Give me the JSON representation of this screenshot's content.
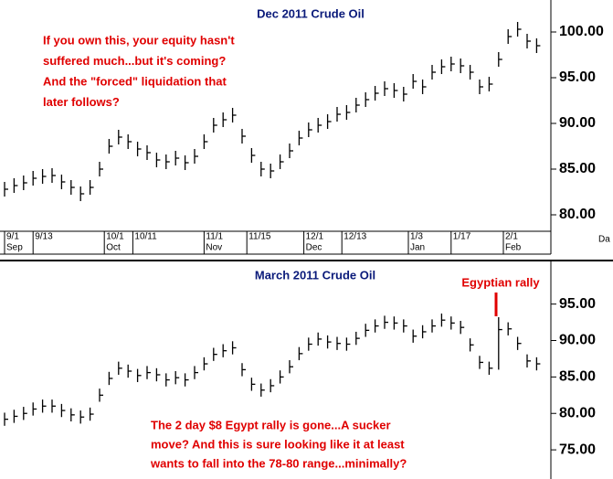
{
  "chart_data": [
    {
      "type": "ohlc",
      "title": "Dec 2011 Crude Oil",
      "annotation": [
        "If you own this, your equity hasn't",
        "suffered much...but it's coming?",
        "And the \"forced\" liquidation that",
        "later follows?"
      ],
      "xlabel": "Da",
      "color": "#000000",
      "x": [
        0,
        2,
        4,
        6,
        8,
        10,
        12,
        14,
        16,
        18,
        20,
        22,
        24,
        26,
        28,
        30,
        32,
        34,
        36,
        38,
        40,
        42,
        44,
        46,
        48,
        50,
        52,
        54,
        56,
        58,
        60,
        62,
        64,
        66,
        68,
        70,
        72,
        74,
        76,
        78,
        80,
        82,
        84,
        86,
        88,
        90,
        92,
        94,
        96,
        98,
        100,
        102,
        104,
        106,
        108,
        110,
        112
      ],
      "high": [
        83.6,
        84.0,
        84.3,
        84.8,
        85.0,
        85.1,
        84.4,
        83.8,
        83.1,
        83.8,
        85.8,
        88.3,
        89.3,
        88.8,
        88.0,
        87.6,
        86.8,
        86.6,
        87.0,
        86.5,
        87.2,
        88.8,
        90.6,
        91.2,
        91.7,
        89.4,
        87.3,
        85.8,
        85.6,
        86.6,
        87.8,
        89.2,
        90.1,
        90.6,
        91.0,
        91.8,
        92.0,
        92.8,
        93.4,
        94.1,
        94.6,
        94.4,
        94.0,
        95.4,
        94.8,
        96.4,
        97.0,
        97.3,
        97.1,
        96.4,
        94.8,
        95.1,
        97.8,
        100.3,
        101.1,
        99.8,
        99.3
      ],
      "low": [
        82.0,
        82.4,
        82.7,
        83.2,
        83.4,
        83.5,
        82.8,
        82.2,
        81.5,
        82.2,
        84.2,
        86.7,
        87.7,
        87.2,
        86.4,
        86.0,
        85.2,
        85.0,
        85.4,
        84.9,
        85.6,
        87.2,
        89.0,
        89.6,
        90.1,
        87.8,
        85.7,
        84.2,
        84.0,
        85.0,
        86.2,
        87.6,
        88.5,
        89.0,
        89.4,
        90.2,
        90.4,
        91.2,
        91.8,
        92.5,
        93.0,
        92.8,
        92.4,
        93.8,
        93.2,
        94.8,
        95.4,
        95.7,
        95.5,
        94.8,
        93.2,
        93.5,
        96.2,
        98.7,
        99.5,
        98.2,
        97.7
      ],
      "close": [
        82.8,
        83.2,
        83.5,
        84.0,
        84.2,
        84.3,
        83.6,
        83.0,
        82.3,
        83.0,
        85.0,
        87.5,
        88.5,
        88.0,
        87.2,
        86.8,
        86.0,
        85.8,
        86.2,
        85.7,
        86.4,
        88.0,
        89.8,
        90.4,
        90.9,
        88.6,
        86.5,
        85.0,
        84.8,
        85.8,
        87.0,
        88.4,
        89.3,
        89.8,
        90.2,
        91.0,
        91.2,
        92.0,
        92.6,
        93.3,
        93.8,
        93.6,
        93.2,
        94.6,
        94.0,
        95.6,
        96.2,
        96.5,
        96.3,
        95.6,
        94.0,
        94.3,
        97.0,
        99.5,
        100.3,
        99.0,
        98.5
      ],
      "xlim": [
        0,
        115
      ],
      "xticks": [
        {
          "value": 0,
          "label": "9/1"
        },
        {
          "value": 6,
          "label": "9/13"
        },
        {
          "value": 21,
          "label": "10/1"
        },
        {
          "value": 27,
          "label": "10/11"
        },
        {
          "value": 42,
          "label": "11/1"
        },
        {
          "value": 51,
          "label": "11/15"
        },
        {
          "value": 63,
          "label": "12/1"
        },
        {
          "value": 71,
          "label": "12/13"
        },
        {
          "value": 85,
          "label": "1/3"
        },
        {
          "value": 94,
          "label": "1/17"
        },
        {
          "value": 105,
          "label": "2/1"
        }
      ],
      "month_ticks": [
        {
          "value": 0,
          "label": "Sep"
        },
        {
          "value": 21,
          "label": "Oct"
        },
        {
          "value": 42,
          "label": "Nov"
        },
        {
          "value": 63,
          "label": "Dec"
        },
        {
          "value": 85,
          "label": "Jan"
        },
        {
          "value": 105,
          "label": "Feb"
        }
      ],
      "ylim": [
        78.2,
        103.5
      ],
      "yticks": [
        {
          "value": 80,
          "label": "80.00"
        },
        {
          "value": 85,
          "label": "85.00"
        },
        {
          "value": 90,
          "label": "90.00"
        },
        {
          "value": 95,
          "label": "95.00"
        },
        {
          "value": 100,
          "label": "100.00"
        }
      ]
    },
    {
      "type": "ohlc",
      "title": "March 2011 Crude Oil",
      "annotation": [
        "The 2 day $8 Egypt rally is gone...A sucker",
        "move? And this is sure looking like it at least",
        "wants to fall into the 78-80 range...minimally?"
      ],
      "callout": "Egyptian rally",
      "color": "#000000",
      "x": [
        0,
        2,
        4,
        6,
        8,
        10,
        12,
        14,
        16,
        18,
        20,
        22,
        24,
        26,
        28,
        30,
        32,
        34,
        36,
        38,
        40,
        42,
        44,
        46,
        48,
        50,
        52,
        54,
        56,
        58,
        60,
        62,
        64,
        66,
        68,
        70,
        72,
        74,
        76,
        78,
        80,
        82,
        84,
        86,
        88,
        90,
        92,
        94,
        96,
        98,
        100,
        102,
        104,
        106,
        108,
        110,
        112
      ],
      "high": [
        80.1,
        80.5,
        80.9,
        81.5,
        81.9,
        81.9,
        81.3,
        80.7,
        80.4,
        80.8,
        83.4,
        85.7,
        87.1,
        86.7,
        86.1,
        86.5,
        86.2,
        85.5,
        85.8,
        85.5,
        86.5,
        87.7,
        89.0,
        89.5,
        89.9,
        86.9,
        84.9,
        84.1,
        84.7,
        85.9,
        87.3,
        89.1,
        90.4,
        91.1,
        90.7,
        90.5,
        90.4,
        91.2,
        92.3,
        92.9,
        93.4,
        93.3,
        92.9,
        91.5,
        92.1,
        92.9,
        93.7,
        93.3,
        92.7,
        90.3,
        87.9,
        87.1,
        93.2,
        92.5,
        90.5,
        88.1,
        87.7
      ],
      "low": [
        78.3,
        78.7,
        79.1,
        79.7,
        80.1,
        80.1,
        79.5,
        78.9,
        78.6,
        79.0,
        81.6,
        83.9,
        85.3,
        84.9,
        84.3,
        84.7,
        84.4,
        83.7,
        84.0,
        83.7,
        84.7,
        85.9,
        87.2,
        87.7,
        88.1,
        85.1,
        83.1,
        82.3,
        82.9,
        84.1,
        85.5,
        87.3,
        88.6,
        89.3,
        88.9,
        88.7,
        88.6,
        89.4,
        90.5,
        91.1,
        91.6,
        91.5,
        91.1,
        89.7,
        90.3,
        91.1,
        91.9,
        91.5,
        90.9,
        88.5,
        86.1,
        85.3,
        86.0,
        90.7,
        88.7,
        86.3,
        85.9
      ],
      "close": [
        79.2,
        79.6,
        80.0,
        80.6,
        81.0,
        81.0,
        80.4,
        79.8,
        79.5,
        79.9,
        82.5,
        84.8,
        86.2,
        85.8,
        85.2,
        85.6,
        85.3,
        84.6,
        84.9,
        84.6,
        85.6,
        86.8,
        88.1,
        88.6,
        89.0,
        86.0,
        84.0,
        83.2,
        83.8,
        85.0,
        86.4,
        88.2,
        89.5,
        90.2,
        89.8,
        89.6,
        89.5,
        90.3,
        91.4,
        92.0,
        92.5,
        92.4,
        92.0,
        90.6,
        91.2,
        92.0,
        92.8,
        92.4,
        91.8,
        89.4,
        87.0,
        86.2,
        91.5,
        91.6,
        89.6,
        87.2,
        86.8
      ],
      "xlim": [
        0,
        115
      ],
      "ylim": [
        71,
        100.6
      ],
      "yticks": [
        {
          "value": 75,
          "label": "75.00"
        },
        {
          "value": 80,
          "label": "80.00"
        },
        {
          "value": 85,
          "label": "85.00"
        },
        {
          "value": 90,
          "label": "90.00"
        },
        {
          "value": 95,
          "label": "95.00"
        }
      ]
    }
  ]
}
